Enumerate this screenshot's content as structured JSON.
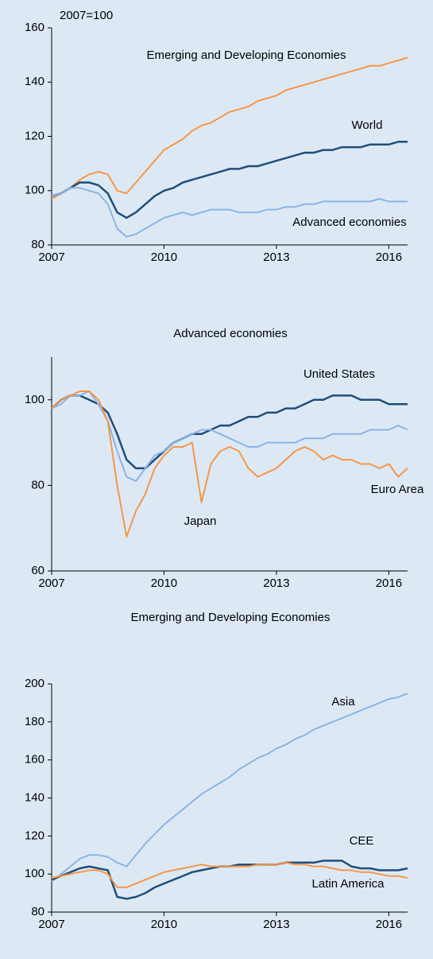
{
  "chart_data": [
    {
      "type": "line",
      "annotation": "2007=100",
      "x": [
        2007,
        2007.25,
        2007.5,
        2007.75,
        2008,
        2008.25,
        2008.5,
        2008.75,
        2009,
        2009.25,
        2009.5,
        2009.75,
        2010,
        2010.25,
        2010.5,
        2010.75,
        2011,
        2011.25,
        2011.5,
        2011.75,
        2012,
        2012.25,
        2012.5,
        2012.75,
        2013,
        2013.25,
        2013.5,
        2013.75,
        2014,
        2014.25,
        2014.5,
        2014.75,
        2015,
        2015.25,
        2015.5,
        2015.75,
        2016,
        2016.25,
        2016.5
      ],
      "xlim": [
        2007,
        2016.5
      ],
      "xticks": [
        2007,
        2010,
        2013,
        2016
      ],
      "ylim": [
        80,
        160
      ],
      "yticks": [
        80,
        100,
        120,
        140,
        160
      ],
      "series": [
        {
          "name": "Emerging and Developing Economies",
          "color": "#f79646",
          "values": [
            97,
            99,
            101,
            104,
            106,
            107,
            106,
            100,
            99,
            103,
            107,
            111,
            115,
            117,
            119,
            122,
            124,
            125,
            127,
            129,
            130,
            131,
            133,
            134,
            135,
            137,
            138,
            139,
            140,
            141,
            142,
            143,
            144,
            145,
            146,
            146,
            147,
            148,
            149
          ]
        },
        {
          "name": "World",
          "color": "#1f4e79",
          "values": [
            98,
            99,
            101,
            103,
            103,
            102,
            99,
            92,
            90,
            92,
            95,
            98,
            100,
            101,
            103,
            104,
            105,
            106,
            107,
            108,
            108,
            109,
            109,
            110,
            111,
            112,
            113,
            114,
            114,
            115,
            115,
            116,
            116,
            116,
            117,
            117,
            117,
            118,
            118
          ]
        },
        {
          "name": "Advanced economies",
          "color": "#8db3e2",
          "values": [
            98,
            99,
            101,
            101,
            100,
            99,
            95,
            86,
            83,
            84,
            86,
            88,
            90,
            91,
            92,
            91,
            92,
            93,
            93,
            93,
            92,
            92,
            92,
            93,
            93,
            94,
            94,
            95,
            95,
            96,
            96,
            96,
            96,
            96,
            96,
            97,
            96,
            96,
            96
          ]
        }
      ]
    },
    {
      "type": "line",
      "title": "Advanced economies",
      "x": [
        2007,
        2007.25,
        2007.5,
        2007.75,
        2008,
        2008.25,
        2008.5,
        2008.75,
        2009,
        2009.25,
        2009.5,
        2009.75,
        2010,
        2010.25,
        2010.5,
        2010.75,
        2011,
        2011.25,
        2011.5,
        2011.75,
        2012,
        2012.25,
        2012.5,
        2012.75,
        2013,
        2013.25,
        2013.5,
        2013.75,
        2014,
        2014.25,
        2014.5,
        2014.75,
        2015,
        2015.25,
        2015.5,
        2015.75,
        2016,
        2016.25,
        2016.5
      ],
      "xlim": [
        2007,
        2016.5
      ],
      "xticks": [
        2007,
        2010,
        2013,
        2016
      ],
      "ylim": [
        60,
        110
      ],
      "yticks": [
        60,
        80,
        100
      ],
      "series": [
        {
          "name": "United States",
          "color": "#1f4e79",
          "values": [
            98,
            100,
            101,
            101,
            100,
            99,
            97,
            92,
            86,
            84,
            84,
            86,
            88,
            90,
            91,
            92,
            92,
            93,
            94,
            94,
            95,
            96,
            96,
            97,
            97,
            98,
            98,
            99,
            100,
            100,
            101,
            101,
            101,
            100,
            100,
            100,
            99,
            99,
            99
          ]
        },
        {
          "name": "Euro Area",
          "color": "#8db3e2",
          "values": [
            98,
            99,
            101,
            101,
            102,
            99,
            95,
            88,
            82,
            81,
            84,
            87,
            88,
            90,
            91,
            92,
            93,
            93,
            92,
            91,
            90,
            89,
            89,
            90,
            90,
            90,
            90,
            91,
            91,
            91,
            92,
            92,
            92,
            92,
            93,
            93,
            93,
            94,
            93
          ]
        },
        {
          "name": "Japan",
          "color": "#f79646",
          "values": [
            98,
            100,
            101,
            102,
            102,
            100,
            95,
            80,
            68,
            74,
            78,
            84,
            87,
            89,
            89,
            90,
            76,
            85,
            88,
            89,
            88,
            84,
            82,
            83,
            84,
            86,
            88,
            89,
            88,
            86,
            87,
            86,
            86,
            85,
            85,
            84,
            85,
            82,
            84
          ]
        }
      ]
    },
    {
      "type": "line",
      "title": "Emerging and Developing Economies",
      "x": [
        2007,
        2007.25,
        2007.5,
        2007.75,
        2008,
        2008.25,
        2008.5,
        2008.75,
        2009,
        2009.25,
        2009.5,
        2009.75,
        2010,
        2010.25,
        2010.5,
        2010.75,
        2011,
        2011.25,
        2011.5,
        2011.75,
        2012,
        2012.25,
        2012.5,
        2012.75,
        2013,
        2013.25,
        2013.5,
        2013.75,
        2014,
        2014.25,
        2014.5,
        2014.75,
        2015,
        2015.25,
        2015.5,
        2015.75,
        2016,
        2016.25,
        2016.5
      ],
      "xlim": [
        2007,
        2016.5
      ],
      "xticks": [
        2007,
        2010,
        2013,
        2016
      ],
      "ylim": [
        80,
        200
      ],
      "yticks": [
        80,
        100,
        120,
        140,
        160,
        180,
        200
      ],
      "series": [
        {
          "name": "Asia",
          "color": "#8db3e2",
          "values": [
            96,
            100,
            104,
            108,
            110,
            110,
            109,
            106,
            104,
            110,
            116,
            121,
            126,
            130,
            134,
            138,
            142,
            145,
            148,
            151,
            155,
            158,
            161,
            163,
            166,
            168,
            171,
            173,
            176,
            178,
            180,
            182,
            184,
            186,
            188,
            190,
            192,
            193,
            195
          ]
        },
        {
          "name": "CEE",
          "color": "#1f4e79",
          "values": [
            97,
            99,
            101,
            103,
            104,
            103,
            102,
            88,
            87,
            88,
            90,
            93,
            95,
            97,
            99,
            101,
            102,
            103,
            104,
            104,
            105,
            105,
            105,
            105,
            105,
            106,
            106,
            106,
            106,
            107,
            107,
            107,
            104,
            103,
            103,
            102,
            102,
            102,
            103
          ]
        },
        {
          "name": "Latin America",
          "color": "#f79646",
          "values": [
            98,
            99,
            100,
            101,
            102,
            102,
            100,
            93,
            93,
            95,
            97,
            99,
            101,
            102,
            103,
            104,
            105,
            104,
            104,
            104,
            104,
            104,
            105,
            105,
            105,
            106,
            105,
            105,
            104,
            104,
            103,
            102,
            102,
            101,
            101,
            100,
            99,
            99,
            98
          ]
        }
      ]
    }
  ]
}
